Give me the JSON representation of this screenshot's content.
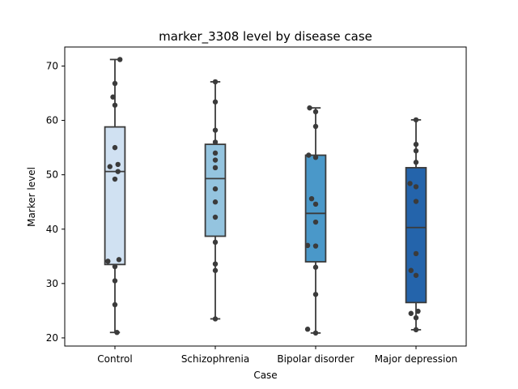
{
  "chart_data": {
    "type": "box",
    "title": "marker_3308 level by disease case",
    "xlabel": "Case",
    "ylabel": "Marker level",
    "ylim": [
      18.5,
      73.5
    ],
    "yticks": [
      "20",
      "30",
      "40",
      "50",
      "60",
      "70"
    ],
    "grid": false,
    "legend": "none",
    "categories": [
      "Control",
      "Schizophrenia",
      "Bipolar disorder",
      "Major depression"
    ],
    "boxes": [
      {
        "category": "Control",
        "min": 21.0,
        "q1": 33.5,
        "median": 50.6,
        "q3": 58.8,
        "max": 71.2,
        "color": "#d0e1f2"
      },
      {
        "category": "Schizophrenia",
        "min": 23.5,
        "q1": 38.7,
        "median": 49.3,
        "q3": 55.6,
        "max": 67.1,
        "color": "#94c4df"
      },
      {
        "category": "Bipolar disorder",
        "min": 20.9,
        "q1": 34.0,
        "median": 42.9,
        "q3": 53.6,
        "max": 62.3,
        "color": "#4a98c9"
      },
      {
        "category": "Major depression",
        "min": 21.5,
        "q1": 26.5,
        "median": 40.3,
        "q3": 51.3,
        "max": 60.1,
        "color": "#2464ab"
      }
    ],
    "points": [
      {
        "category": 0,
        "values": [
          71.2,
          66.8,
          64.3,
          62.8,
          55.0,
          51.9,
          51.5,
          50.6,
          49.2,
          34.4,
          34.1,
          33.1,
          30.5,
          26.1,
          21.0
        ],
        "jitter": [
          0.05,
          0,
          -0.02,
          0,
          0,
          0.03,
          -0.05,
          0.03,
          0,
          0.04,
          -0.07,
          0,
          0,
          0,
          0.02
        ]
      },
      {
        "category": 1,
        "values": [
          67.1,
          63.4,
          58.2,
          56.0,
          54.0,
          52.7,
          51.3,
          47.4,
          45.0,
          42.2,
          37.6,
          33.6,
          32.4,
          23.5
        ],
        "jitter": [
          0,
          0,
          0,
          0,
          0,
          0,
          0,
          0,
          0,
          0,
          0,
          0,
          0,
          0
        ]
      },
      {
        "category": 2,
        "values": [
          62.3,
          61.6,
          58.9,
          53.6,
          53.2,
          45.6,
          44.6,
          41.3,
          37.0,
          36.9,
          33.0,
          28.0,
          21.6,
          20.9
        ],
        "jitter": [
          -0.06,
          0,
          0,
          -0.07,
          0,
          -0.04,
          0,
          0,
          -0.08,
          0,
          0,
          0,
          -0.08,
          0
        ]
      },
      {
        "category": 3,
        "values": [
          60.1,
          55.6,
          54.4,
          52.3,
          48.4,
          47.8,
          45.1,
          35.5,
          32.4,
          31.5,
          24.9,
          24.5,
          23.7,
          21.5
        ],
        "jitter": [
          0,
          0,
          0,
          0,
          -0.06,
          0,
          0,
          0,
          -0.05,
          0,
          0.02,
          -0.05,
          0,
          0
        ]
      }
    ]
  }
}
